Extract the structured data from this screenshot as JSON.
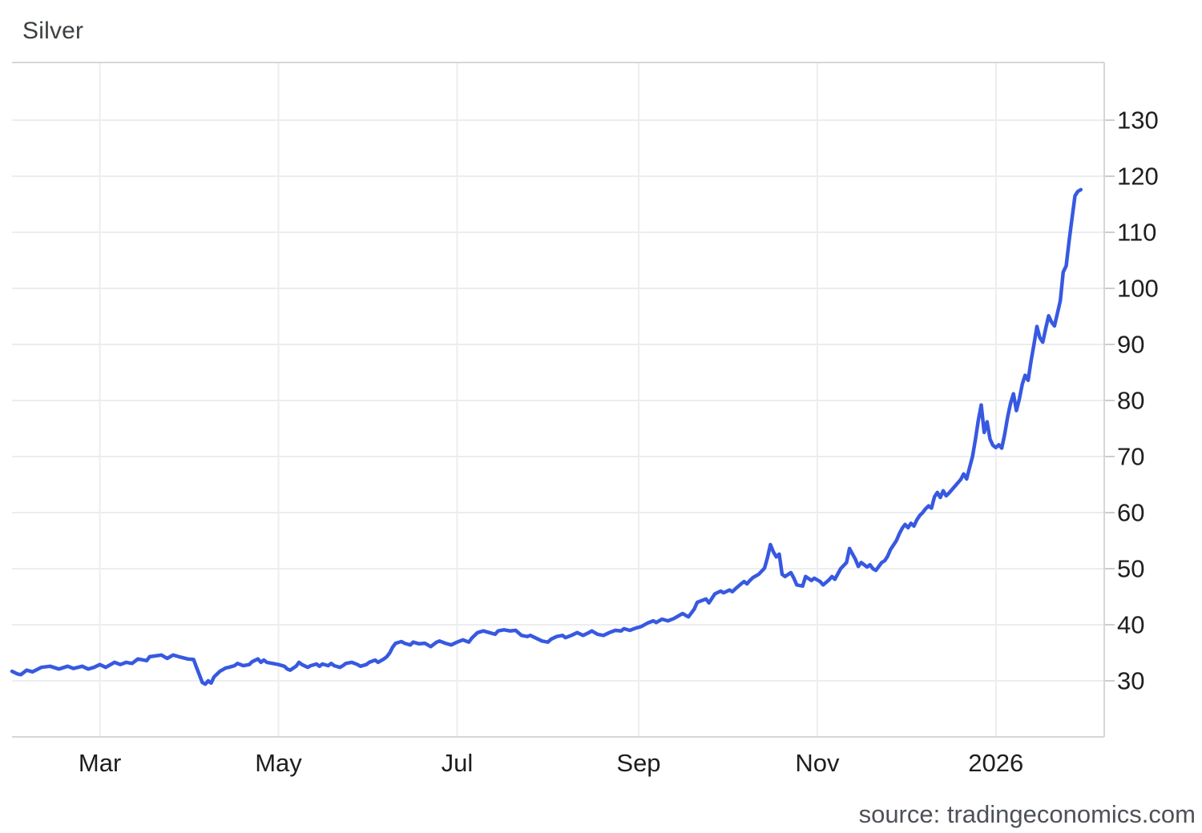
{
  "header": {
    "title": "Silver"
  },
  "footer": {
    "source_label": "source: tradingeconomics.com"
  },
  "colors": {
    "line": "#3759E1",
    "grid": "#ECEDEF",
    "axis_border": "#D4D7DA",
    "tick_mark": "#CBCED1",
    "tick_label": "#1E1E1F",
    "title_text": "#3D4043",
    "source_text": "#4E5257",
    "background": "#FFFFFF"
  },
  "chart_data": {
    "type": "line",
    "title": "Silver",
    "series": [
      {
        "name": "Silver"
      }
    ],
    "legend": "none",
    "grid": "on",
    "y_axis_side": "right",
    "y_ticks": [
      30,
      40,
      50,
      60,
      70,
      80,
      90,
      100,
      110,
      120,
      130
    ],
    "x_ticks": [
      {
        "label": "Mar",
        "day": 30
      },
      {
        "label": "May",
        "day": 91
      },
      {
        "label": "Jul",
        "day": 152
      },
      {
        "label": "Sep",
        "day": 214
      },
      {
        "label": "Nov",
        "day": 275
      },
      {
        "label": "2026",
        "day": 336
      }
    ],
    "x_unit": "day_offset",
    "x_domain_days": [
      0,
      373
    ],
    "last_value": 117.6,
    "points": [
      [
        0,
        31.7
      ],
      [
        2,
        31.2
      ],
      [
        3,
        31.1
      ],
      [
        5,
        31.9
      ],
      [
        7,
        31.6
      ],
      [
        10,
        32.4
      ],
      [
        13,
        32.6
      ],
      [
        16,
        32.1
      ],
      [
        19,
        32.6
      ],
      [
        21,
        32.2
      ],
      [
        24,
        32.6
      ],
      [
        26,
        32.1
      ],
      [
        28,
        32.4
      ],
      [
        30,
        32.9
      ],
      [
        32,
        32.4
      ],
      [
        35,
        33.3
      ],
      [
        37,
        32.9
      ],
      [
        39,
        33.3
      ],
      [
        41,
        33.1
      ],
      [
        43,
        33.9
      ],
      [
        46,
        33.6
      ],
      [
        47,
        34.3
      ],
      [
        51,
        34.6
      ],
      [
        53,
        34.0
      ],
      [
        55,
        34.6
      ],
      [
        57,
        34.3
      ],
      [
        60,
        33.9
      ],
      [
        62,
        33.8
      ],
      [
        63,
        32.4
      ],
      [
        65,
        29.7
      ],
      [
        66,
        29.4
      ],
      [
        67,
        30.0
      ],
      [
        68,
        29.6
      ],
      [
        69,
        30.7
      ],
      [
        71,
        31.7
      ],
      [
        73,
        32.3
      ],
      [
        74,
        32.4
      ],
      [
        76,
        32.7
      ],
      [
        77,
        33.1
      ],
      [
        79,
        32.7
      ],
      [
        81,
        32.9
      ],
      [
        82,
        33.4
      ],
      [
        84,
        33.9
      ],
      [
        85,
        33.3
      ],
      [
        86,
        33.7
      ],
      [
        87,
        33.3
      ],
      [
        89,
        33.1
      ],
      [
        91,
        32.9
      ],
      [
        93,
        32.6
      ],
      [
        94,
        32.1
      ],
      [
        95,
        31.9
      ],
      [
        97,
        32.6
      ],
      [
        98,
        33.3
      ],
      [
        99,
        32.9
      ],
      [
        101,
        32.4
      ],
      [
        102,
        32.7
      ],
      [
        104,
        33.0
      ],
      [
        105,
        32.6
      ],
      [
        106,
        33.0
      ],
      [
        108,
        32.7
      ],
      [
        109,
        33.1
      ],
      [
        110,
        32.7
      ],
      [
        112,
        32.4
      ],
      [
        113,
        32.7
      ],
      [
        114,
        33.1
      ],
      [
        116,
        33.3
      ],
      [
        118,
        32.9
      ],
      [
        119,
        32.6
      ],
      [
        121,
        32.9
      ],
      [
        122,
        33.3
      ],
      [
        124,
        33.7
      ],
      [
        125,
        33.3
      ],
      [
        127,
        33.9
      ],
      [
        128,
        34.3
      ],
      [
        129,
        35.0
      ],
      [
        130,
        36.0
      ],
      [
        131,
        36.7
      ],
      [
        133,
        37.0
      ],
      [
        134,
        36.7
      ],
      [
        136,
        36.4
      ],
      [
        137,
        36.9
      ],
      [
        139,
        36.6
      ],
      [
        141,
        36.7
      ],
      [
        143,
        36.1
      ],
      [
        145,
        36.9
      ],
      [
        146,
        37.1
      ],
      [
        148,
        36.7
      ],
      [
        150,
        36.4
      ],
      [
        152,
        36.9
      ],
      [
        154,
        37.3
      ],
      [
        156,
        36.9
      ],
      [
        157,
        37.6
      ],
      [
        159,
        38.6
      ],
      [
        161,
        38.9
      ],
      [
        163,
        38.6
      ],
      [
        165,
        38.3
      ],
      [
        166,
        38.9
      ],
      [
        168,
        39.1
      ],
      [
        170,
        38.9
      ],
      [
        172,
        39.0
      ],
      [
        174,
        38.1
      ],
      [
        176,
        37.9
      ],
      [
        177,
        38.1
      ],
      [
        179,
        37.6
      ],
      [
        181,
        37.1
      ],
      [
        183,
        36.9
      ],
      [
        184,
        37.4
      ],
      [
        186,
        37.9
      ],
      [
        188,
        38.1
      ],
      [
        189,
        37.7
      ],
      [
        191,
        38.1
      ],
      [
        193,
        38.6
      ],
      [
        195,
        38.1
      ],
      [
        197,
        38.6
      ],
      [
        198,
        38.9
      ],
      [
        200,
        38.3
      ],
      [
        202,
        38.1
      ],
      [
        204,
        38.6
      ],
      [
        206,
        39.0
      ],
      [
        208,
        38.9
      ],
      [
        209,
        39.3
      ],
      [
        211,
        39.0
      ],
      [
        213,
        39.4
      ],
      [
        215,
        39.7
      ],
      [
        217,
        40.3
      ],
      [
        219,
        40.7
      ],
      [
        220,
        40.4
      ],
      [
        222,
        41.0
      ],
      [
        224,
        40.7
      ],
      [
        226,
        41.1
      ],
      [
        229,
        42.0
      ],
      [
        231,
        41.4
      ],
      [
        233,
        42.8
      ],
      [
        234,
        44.0
      ],
      [
        237,
        44.6
      ],
      [
        238,
        43.9
      ],
      [
        240,
        45.5
      ],
      [
        242,
        46.0
      ],
      [
        243,
        45.7
      ],
      [
        245,
        46.2
      ],
      [
        246,
        45.9
      ],
      [
        247,
        46.4
      ],
      [
        249,
        47.3
      ],
      [
        250,
        47.7
      ],
      [
        251,
        47.3
      ],
      [
        252,
        47.9
      ],
      [
        253,
        48.4
      ],
      [
        255,
        49.0
      ],
      [
        257,
        50.1
      ],
      [
        258,
        52.0
      ],
      [
        259,
        54.3
      ],
      [
        260,
        53.0
      ],
      [
        261,
        52.1
      ],
      [
        262,
        52.6
      ],
      [
        263,
        49.0
      ],
      [
        264,
        48.6
      ],
      [
        266,
        49.3
      ],
      [
        267,
        48.3
      ],
      [
        268,
        47.1
      ],
      [
        270,
        46.9
      ],
      [
        271,
        48.6
      ],
      [
        273,
        47.9
      ],
      [
        274,
        48.3
      ],
      [
        276,
        47.7
      ],
      [
        277,
        47.1
      ],
      [
        279,
        48.0
      ],
      [
        280,
        48.6
      ],
      [
        281,
        48.1
      ],
      [
        283,
        50.0
      ],
      [
        285,
        51.1
      ],
      [
        286,
        53.6
      ],
      [
        288,
        51.7
      ],
      [
        289,
        50.4
      ],
      [
        290,
        51.1
      ],
      [
        292,
        50.3
      ],
      [
        293,
        50.7
      ],
      [
        294,
        50.0
      ],
      [
        295,
        49.7
      ],
      [
        297,
        51.1
      ],
      [
        298,
        51.4
      ],
      [
        299,
        52.2
      ],
      [
        300,
        53.4
      ],
      [
        301,
        54.2
      ],
      [
        302,
        55.0
      ],
      [
        303,
        56.2
      ],
      [
        304,
        57.2
      ],
      [
        305,
        57.9
      ],
      [
        306,
        57.3
      ],
      [
        307,
        58.1
      ],
      [
        308,
        57.6
      ],
      [
        309,
        58.7
      ],
      [
        310,
        59.5
      ],
      [
        311,
        60.0
      ],
      [
        312,
        60.7
      ],
      [
        313,
        61.2
      ],
      [
        314,
        60.8
      ],
      [
        315,
        62.8
      ],
      [
        316,
        63.6
      ],
      [
        317,
        62.7
      ],
      [
        318,
        63.9
      ],
      [
        319,
        63.0
      ],
      [
        320,
        63.5
      ],
      [
        322,
        64.7
      ],
      [
        324,
        65.9
      ],
      [
        325,
        66.9
      ],
      [
        326,
        66.0
      ],
      [
        327,
        68.0
      ],
      [
        328,
        70.0
      ],
      [
        329,
        73.0
      ],
      [
        330,
        76.5
      ],
      [
        331,
        79.2
      ],
      [
        332,
        74.3
      ],
      [
        333,
        76.2
      ],
      [
        334,
        73.1
      ],
      [
        335,
        72.0
      ],
      [
        336,
        71.6
      ],
      [
        337,
        72.1
      ],
      [
        338,
        71.5
      ],
      [
        339,
        74.0
      ],
      [
        340,
        77.0
      ],
      [
        341,
        79.5
      ],
      [
        342,
        81.2
      ],
      [
        343,
        78.2
      ],
      [
        344,
        80.2
      ],
      [
        345,
        82.9
      ],
      [
        346,
        84.5
      ],
      [
        347,
        83.6
      ],
      [
        348,
        87.0
      ],
      [
        349,
        90.0
      ],
      [
        350,
        93.2
      ],
      [
        351,
        91.2
      ],
      [
        352,
        90.4
      ],
      [
        353,
        92.8
      ],
      [
        354,
        95.1
      ],
      [
        355,
        94.0
      ],
      [
        356,
        93.3
      ],
      [
        357,
        95.5
      ],
      [
        358,
        97.8
      ],
      [
        359,
        102.9
      ],
      [
        360,
        104.0
      ],
      [
        361,
        108.5
      ],
      [
        362,
        112.5
      ],
      [
        363,
        116.5
      ],
      [
        364,
        117.3
      ],
      [
        365,
        117.6
      ]
    ]
  }
}
